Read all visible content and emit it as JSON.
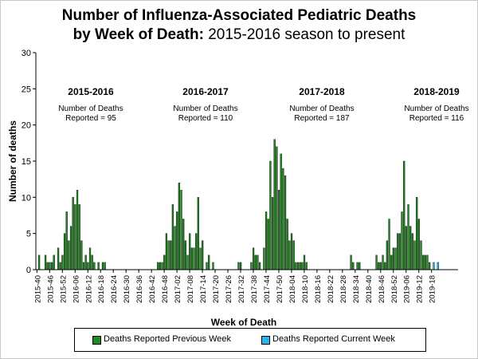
{
  "title": {
    "line1": "Number of Influenza-Associated Pediatric Deaths",
    "line2_bold": "by Week of Death:",
    "line2_normal": "2015-2016 season to present"
  },
  "colors": {
    "previous": "#1f8a1f",
    "current": "#29b5e8"
  },
  "chart_data": {
    "type": "bar",
    "stacked": true,
    "xlabel": "Week of Death",
    "ylabel": "Number of deaths",
    "ylim": [
      0,
      30
    ],
    "yticks": [
      0,
      5,
      10,
      15,
      20,
      25,
      30
    ],
    "gridlines": false,
    "legend_position": "bottom",
    "tick_labels": [
      "2015-40",
      "2015-46",
      "2015-52",
      "2016-06",
      "2016-12",
      "2016-18",
      "2016-24",
      "2016-30",
      "2016-36",
      "2016-42",
      "2016-48",
      "2017-02",
      "2017-08",
      "2017-14",
      "2017-20",
      "2017-26",
      "2017-32",
      "2017-38",
      "2017-44",
      "2017-50",
      "2018-04",
      "2018-10",
      "2018-16",
      "2018-22",
      "2018-28",
      "2018-34",
      "2018-40",
      "2018-46",
      "2018-52",
      "2019-06",
      "2019-12",
      "2019-18"
    ],
    "season_annotations": [
      {
        "season": "2015-2016",
        "line1": "Number of Deaths",
        "line2": "Reported = 95"
      },
      {
        "season": "2016-2017",
        "line1": "Number of Deaths",
        "line2": "Reported = 110"
      },
      {
        "season": "2017-2018",
        "line1": "Number of Deaths",
        "line2": "Reported = 187"
      },
      {
        "season": "2018-2019",
        "line1": "Number of Deaths",
        "line2": "Reported = 116"
      }
    ],
    "series": [
      {
        "name": "Deaths Reported Previous Week",
        "values": [
          0,
          2,
          0,
          0,
          2,
          1,
          1,
          1,
          2,
          0,
          3,
          1,
          2,
          5,
          8,
          4,
          6,
          10,
          9,
          11,
          9,
          4,
          1,
          2,
          1,
          3,
          2,
          1,
          0,
          1,
          0,
          1,
          1,
          0,
          0,
          0,
          0,
          0,
          0,
          0,
          0,
          0,
          0,
          0,
          0,
          0,
          0,
          0,
          0,
          0,
          0,
          0,
          0,
          0,
          0,
          0,
          0,
          1,
          1,
          1,
          2,
          5,
          4,
          4,
          9,
          6,
          8,
          12,
          11,
          7,
          4,
          2,
          5,
          3,
          3,
          5,
          10,
          3,
          4,
          0,
          1,
          2,
          0,
          1,
          0,
          0,
          0,
          0,
          0,
          0,
          0,
          0,
          0,
          0,
          0,
          1,
          1,
          0,
          0,
          0,
          0,
          1,
          3,
          2,
          2,
          1,
          0,
          3,
          8,
          7,
          15,
          10,
          18,
          17,
          11,
          16,
          14,
          13,
          7,
          4,
          5,
          4,
          1,
          1,
          1,
          1,
          2,
          1,
          0,
          0,
          0,
          0,
          0,
          0,
          0,
          0,
          0,
          0,
          0,
          0,
          0,
          0,
          0,
          0,
          0,
          0,
          0,
          0,
          2,
          1,
          0,
          1,
          1,
          0,
          0,
          0,
          0,
          0,
          0,
          0,
          2,
          1,
          1,
          2,
          1,
          4,
          7,
          2,
          3,
          3,
          5,
          5,
          8,
          15,
          6,
          9,
          6,
          5,
          4,
          10,
          7,
          4,
          2,
          2,
          2,
          1,
          0,
          0,
          0,
          0,
          0,
          0,
          0,
          0,
          0,
          0,
          0,
          0,
          0
        ]
      },
      {
        "name": "Deaths Reported Current Week",
        "values": [
          0,
          0,
          0,
          0,
          0,
          0,
          0,
          0,
          0,
          0,
          0,
          0,
          0,
          0,
          0,
          0,
          0,
          0,
          0,
          0,
          0,
          0,
          0,
          0,
          0,
          0,
          0,
          0,
          0,
          0,
          0,
          0,
          0,
          0,
          0,
          0,
          0,
          0,
          0,
          0,
          0,
          0,
          0,
          0,
          0,
          0,
          0,
          0,
          0,
          0,
          0,
          0,
          0,
          0,
          0,
          0,
          0,
          0,
          0,
          0,
          0,
          0,
          0,
          0,
          0,
          0,
          0,
          0,
          0,
          0,
          0,
          0,
          0,
          0,
          0,
          0,
          0,
          0,
          0,
          0,
          0,
          0,
          0,
          0,
          0,
          0,
          0,
          0,
          0,
          0,
          0,
          0,
          0,
          0,
          0,
          0,
          0,
          0,
          0,
          0,
          0,
          0,
          0,
          0,
          0,
          0,
          0,
          0,
          0,
          0,
          0,
          0,
          0,
          0,
          0,
          0,
          0,
          0,
          0,
          0,
          0,
          0,
          0,
          0,
          0,
          0,
          0,
          0,
          0,
          0,
          0,
          0,
          0,
          0,
          0,
          0,
          0,
          0,
          0,
          0,
          0,
          0,
          0,
          0,
          0,
          0,
          0,
          0,
          0,
          0,
          0,
          0,
          0,
          0,
          0,
          0,
          0,
          0,
          0,
          0,
          0,
          0,
          0,
          0,
          0,
          0,
          0,
          0,
          0,
          0,
          0,
          0,
          0,
          0,
          0,
          0,
          0,
          0,
          0,
          0,
          0,
          0,
          0,
          0,
          0,
          0,
          0,
          1,
          0,
          1,
          0,
          0,
          0,
          0,
          0,
          0,
          0,
          0,
          0,
          0,
          0,
          0,
          0
        ]
      }
    ]
  }
}
